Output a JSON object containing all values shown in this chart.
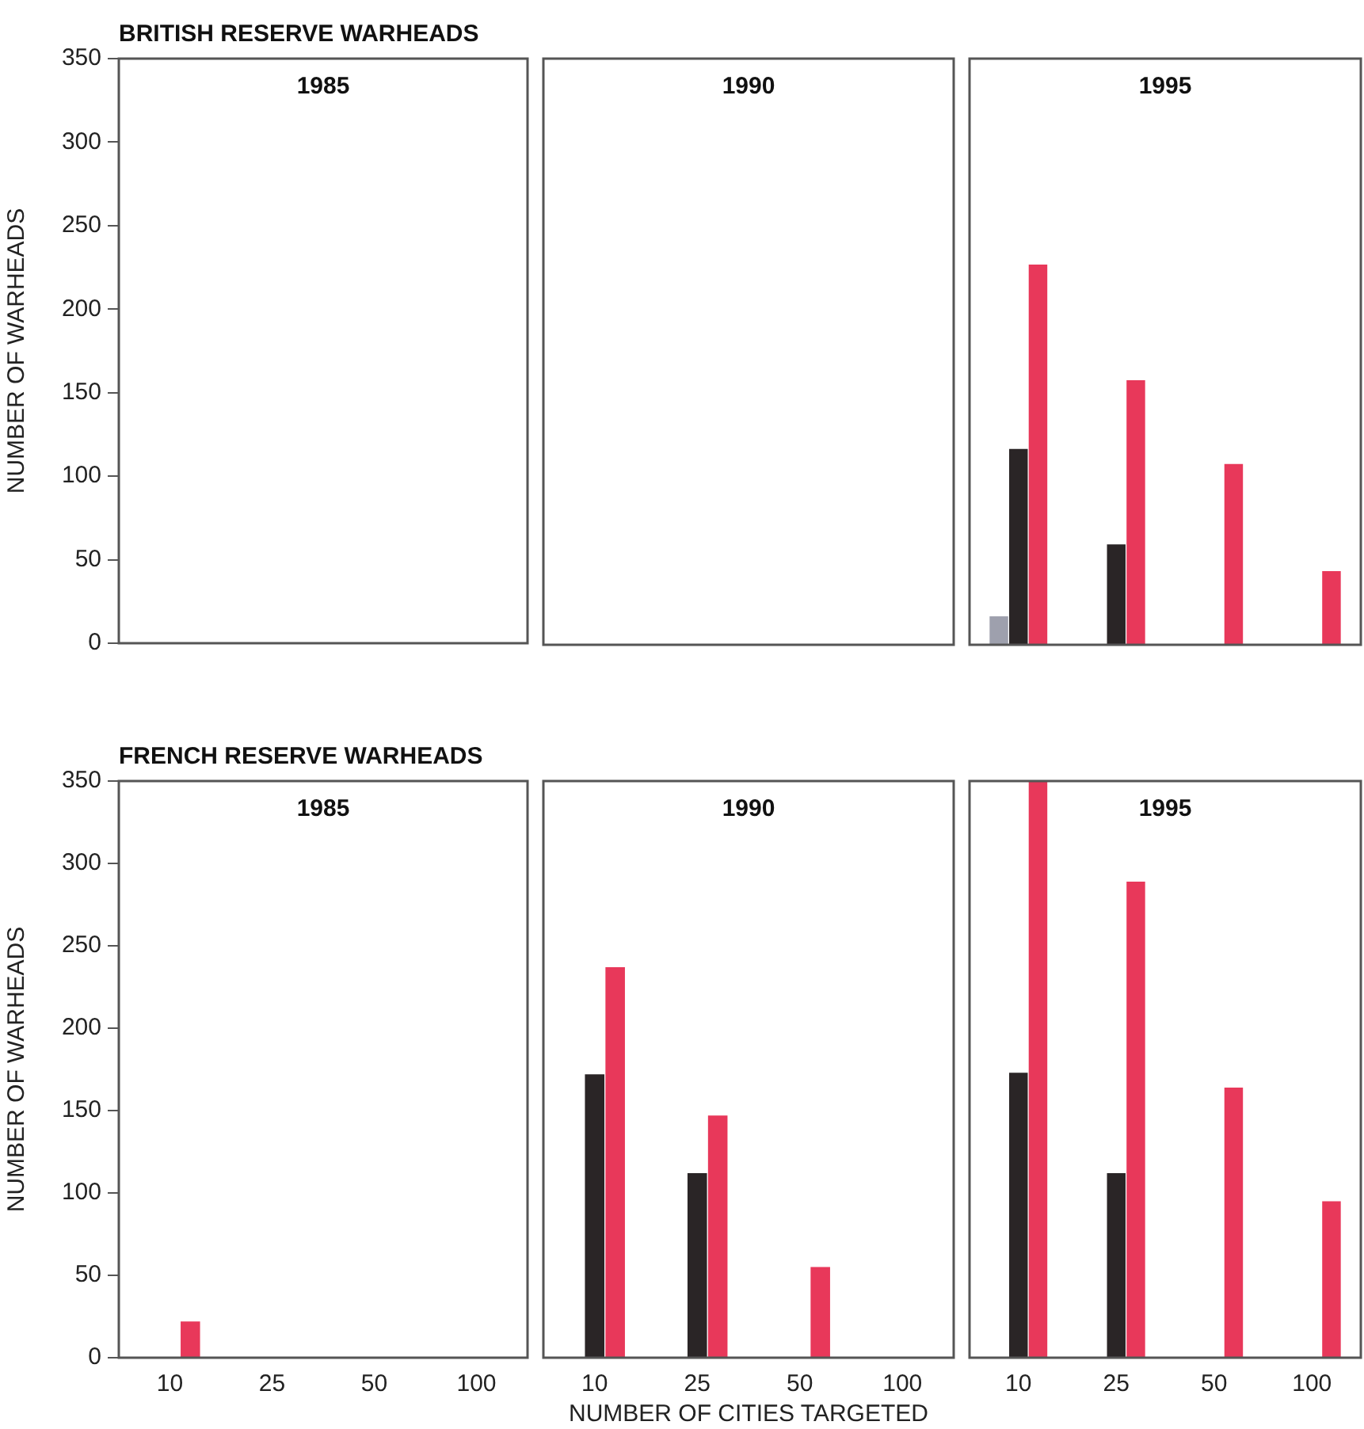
{
  "chart_data": [
    {
      "type": "bar",
      "title": "1985",
      "annotations": [
        "BRITISH RESERVE WARHEADS"
      ],
      "ylabel": "NUMBER OF WARHEADS",
      "categories": [
        "10",
        "25",
        "50",
        "100"
      ],
      "tick_labels": "y",
      "ylim": [
        0,
        350
      ],
      "yticks": [
        0,
        50,
        100,
        150,
        200,
        250,
        300,
        350
      ],
      "series": [
        {
          "color": "#9ea0ad",
          "values": [
            0,
            0,
            0,
            0
          ]
        },
        {
          "color": "#2a2526",
          "values": [
            0,
            0,
            0,
            0
          ]
        },
        {
          "color": "#e8385a",
          "values": [
            0,
            0,
            0,
            0
          ]
        }
      ]
    },
    {
      "type": "bar",
      "title": "1990",
      "categories": [
        "10",
        "25",
        "50",
        "100"
      ],
      "tick_labels": false,
      "ylim": [
        0,
        350
      ],
      "yticks": [
        0,
        50,
        100,
        150,
        200,
        250,
        300,
        350
      ],
      "series": [
        {
          "color": "#9ea0ad",
          "values": [
            0,
            0,
            0,
            0
          ]
        },
        {
          "color": "#2a2526",
          "values": [
            0,
            0,
            0,
            0
          ]
        },
        {
          "color": "#e8385a",
          "values": [
            0,
            0,
            0,
            0
          ]
        }
      ]
    },
    {
      "type": "bar",
      "title": "1995",
      "categories": [
        "10",
        "25",
        "50",
        "100"
      ],
      "tick_labels": false,
      "ylim": [
        0,
        350
      ],
      "yticks": [
        0,
        50,
        100,
        150,
        200,
        250,
        300,
        350
      ],
      "series": [
        {
          "color": "#9ea0ad",
          "values": [
            17,
            0,
            0,
            0
          ]
        },
        {
          "color": "#2a2526",
          "values": [
            117,
            60,
            0,
            0
          ]
        },
        {
          "color": "#e8385a",
          "values": [
            227,
            158,
            108,
            44
          ]
        }
      ]
    },
    {
      "type": "bar",
      "title": "1985",
      "annotations": [
        "FRENCH RESERVE WARHEADS"
      ],
      "ylabel": "NUMBER OF WARHEADS",
      "categories": [
        "10",
        "25",
        "50",
        "100"
      ],
      "ylim": [
        0,
        350
      ],
      "yticks": [
        0,
        50,
        100,
        150,
        200,
        250,
        300,
        350
      ],
      "series": [
        {
          "color": "#9ea0ad",
          "values": [
            0,
            0,
            0,
            0
          ]
        },
        {
          "color": "#2a2526",
          "values": [
            0,
            0,
            0,
            0
          ]
        },
        {
          "color": "#e8385a",
          "values": [
            22,
            0,
            0,
            0
          ]
        }
      ]
    },
    {
      "type": "bar",
      "title": "1990",
      "xlabel": "NUMBER OF CITIES TARGETED",
      "categories": [
        "10",
        "25",
        "50",
        "100"
      ],
      "tick_labels": "x",
      "ylim": [
        0,
        350
      ],
      "yticks": [
        0,
        50,
        100,
        150,
        200,
        250,
        300,
        350
      ],
      "series": [
        {
          "color": "#9ea0ad",
          "values": [
            0,
            0,
            0,
            0
          ]
        },
        {
          "color": "#2a2526",
          "values": [
            172,
            112,
            0,
            0
          ]
        },
        {
          "color": "#e8385a",
          "values": [
            237,
            147,
            55,
            0
          ]
        }
      ]
    },
    {
      "type": "bar",
      "title": "1995",
      "categories": [
        "10",
        "25",
        "50",
        "100"
      ],
      "tick_labels": "x",
      "ylim": [
        0,
        350
      ],
      "yticks": [
        0,
        50,
        100,
        150,
        200,
        250,
        300,
        350
      ],
      "series": [
        {
          "color": "#9ea0ad",
          "values": [
            0,
            0,
            0,
            0
          ]
        },
        {
          "color": "#2a2526",
          "values": [
            173,
            112,
            0,
            0
          ]
        },
        {
          "color": "#e8385a",
          "values": [
            350,
            289,
            164,
            95
          ]
        }
      ]
    }
  ]
}
